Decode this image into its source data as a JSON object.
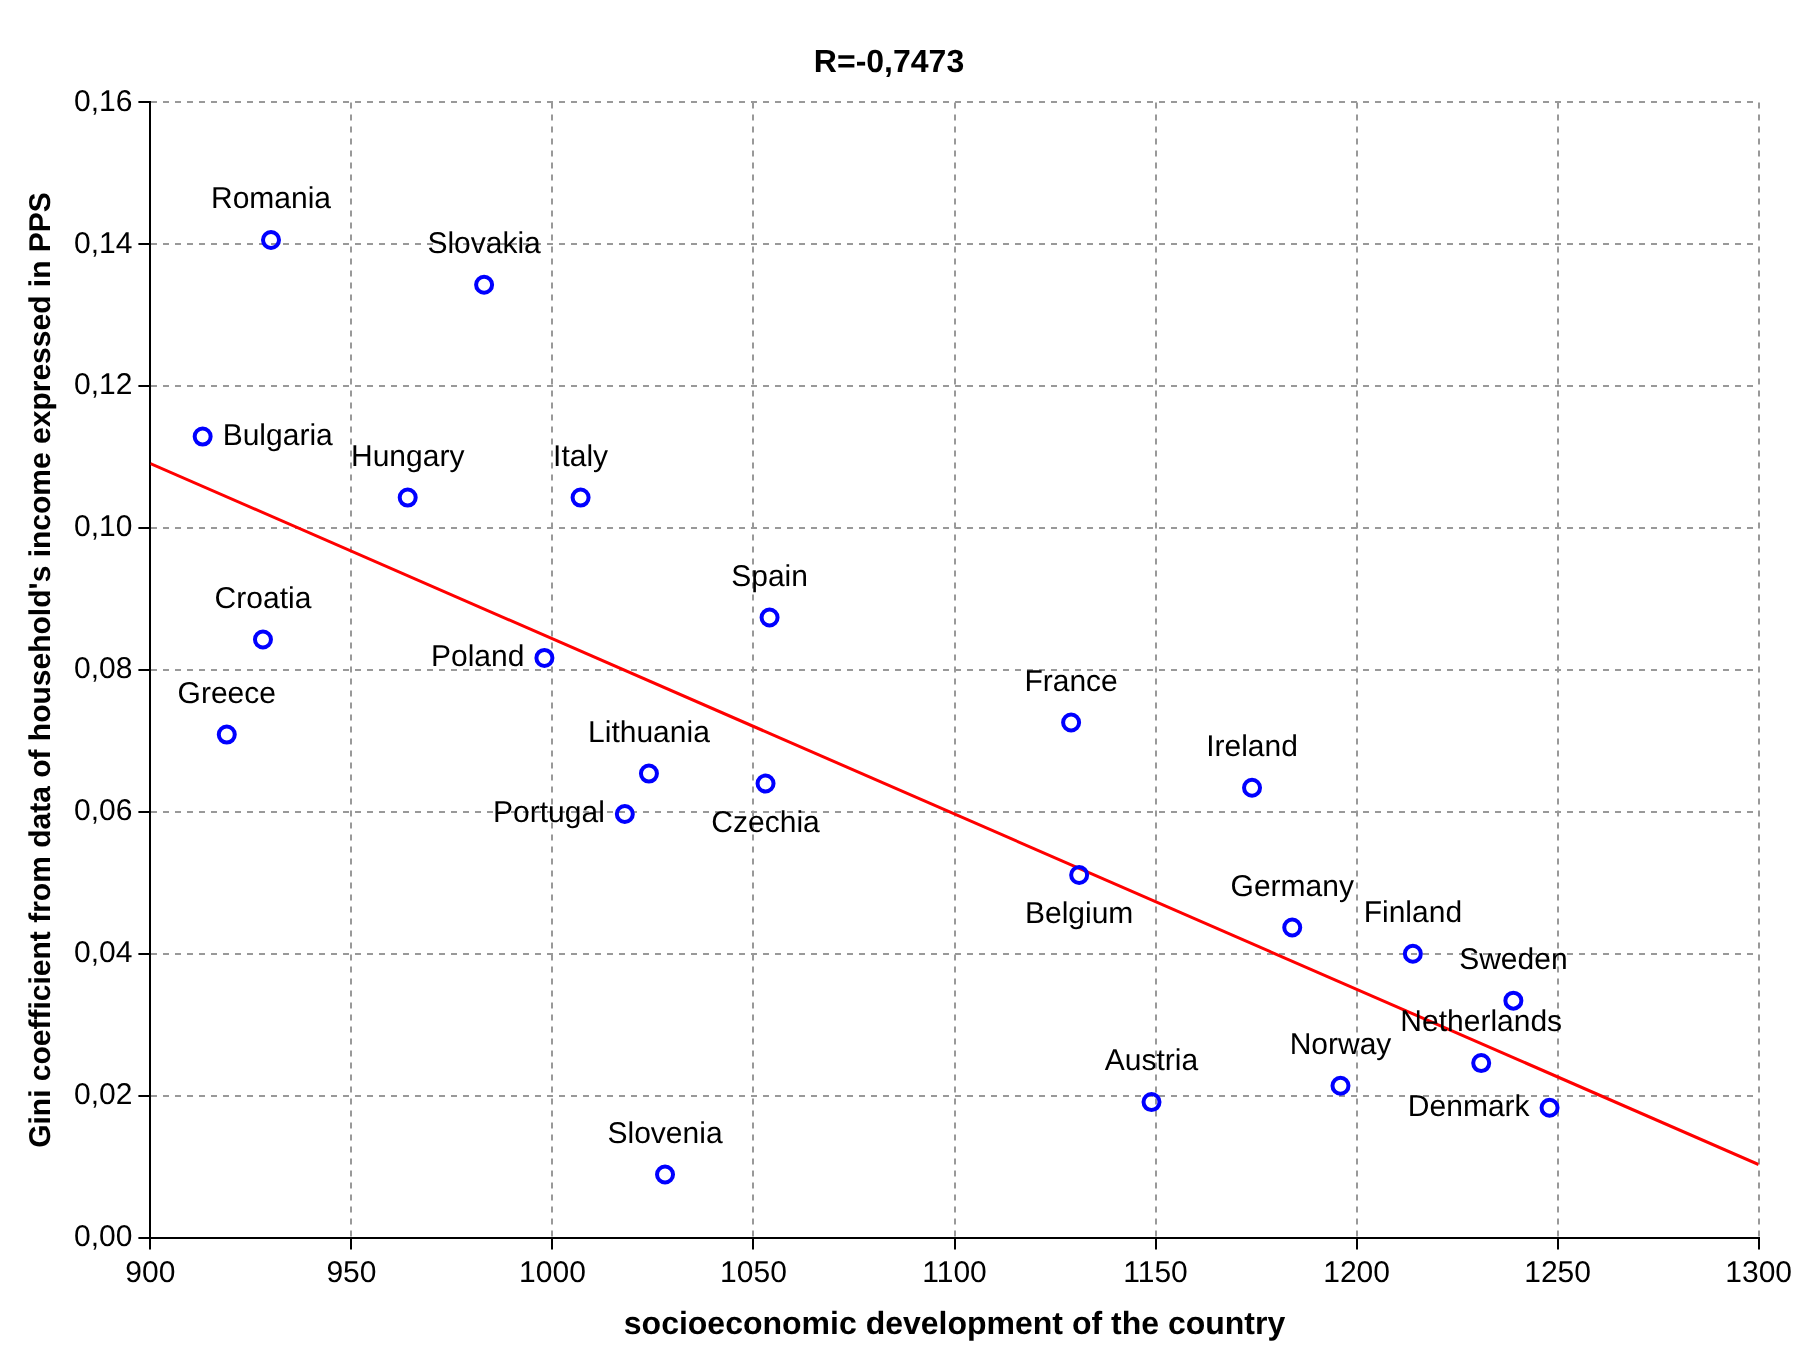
{
  "chart_data": {
    "type": "scatter",
    "title": "R=-0,7473",
    "xlabel": "socioeconomic development of the country",
    "ylabel": "Gini coefficient from data of household's income expressed in PPS",
    "series": [
      {
        "marker": "circle",
        "color": "#0000ff",
        "x": [
          930,
          983,
          913,
          964,
          1007,
          1054,
          928,
          998,
          919,
          1129,
          1024,
          1053,
          1018,
          1174,
          1131,
          1184,
          1214,
          1239,
          1149,
          1196,
          1231,
          1248,
          1028
        ],
        "values": [
          0.1406,
          0.1343,
          0.1129,
          0.1043,
          0.1043,
          0.0874,
          0.0843,
          0.0817,
          0.0709,
          0.0726,
          0.0654,
          0.064,
          0.0597,
          0.0634,
          0.0511,
          0.0437,
          0.04,
          0.0334,
          0.0191,
          0.0214,
          0.0246,
          0.0183,
          0.0089
        ]
      },
      {
        "type": "line",
        "marker": "none",
        "color": "#ff0000",
        "x": [
          900,
          1300
        ],
        "values": [
          0.1091,
          0.0103
        ]
      }
    ],
    "annotations": [
      {
        "text": "Romania",
        "x": 930,
        "y": 0.1406
      },
      {
        "text": "Slovakia",
        "x": 983,
        "y": 0.1343
      },
      {
        "text": "Bulgaria",
        "x": 913,
        "y": 0.1129
      },
      {
        "text": "Hungary",
        "x": 964,
        "y": 0.1043
      },
      {
        "text": "Italy",
        "x": 1007,
        "y": 0.1043
      },
      {
        "text": "Spain",
        "x": 1054,
        "y": 0.0874
      },
      {
        "text": "Croatia",
        "x": 928,
        "y": 0.0843
      },
      {
        "text": "Poland",
        "x": 998,
        "y": 0.0817
      },
      {
        "text": "Greece",
        "x": 919,
        "y": 0.0709
      },
      {
        "text": "France",
        "x": 1129,
        "y": 0.0726
      },
      {
        "text": "Lithuania",
        "x": 1024,
        "y": 0.0654
      },
      {
        "text": "Czechia",
        "x": 1053,
        "y": 0.064
      },
      {
        "text": "Portugal",
        "x": 1018,
        "y": 0.0597
      },
      {
        "text": "Ireland",
        "x": 1174,
        "y": 0.0634
      },
      {
        "text": "Belgium",
        "x": 1131,
        "y": 0.0511
      },
      {
        "text": "Germany",
        "x": 1184,
        "y": 0.0437
      },
      {
        "text": "Finland",
        "x": 1214,
        "y": 0.04
      },
      {
        "text": "Sweden",
        "x": 1239,
        "y": 0.0334
      },
      {
        "text": "Austria",
        "x": 1149,
        "y": 0.0191
      },
      {
        "text": "Norway",
        "x": 1196,
        "y": 0.0214
      },
      {
        "text": "Netherlands",
        "x": 1231,
        "y": 0.0246
      },
      {
        "text": "Denmark",
        "x": 1248,
        "y": 0.0183
      },
      {
        "text": "Slovenia",
        "x": 1028,
        "y": 0.0089
      }
    ],
    "xlim": [
      900,
      1300
    ],
    "xticks": [
      900,
      950,
      1000,
      1050,
      1100,
      1150,
      1200,
      1250,
      1300
    ],
    "ylim": [
      0,
      0.16
    ],
    "yticks": [
      {
        "value": 0,
        "label": "0,00"
      },
      {
        "value": 0.02,
        "label": "0,02"
      },
      {
        "value": 0.04,
        "label": "0,04"
      },
      {
        "value": 0.06,
        "label": "0,06"
      },
      {
        "value": 0.08,
        "label": "0,08"
      },
      {
        "value": 0.1,
        "label": "0,10"
      },
      {
        "value": 0.12,
        "label": "0,12"
      },
      {
        "value": 0.14,
        "label": "0,14"
      },
      {
        "value": 0.16,
        "label": "0,16"
      }
    ],
    "grid": true,
    "line_style": "solid",
    "legend": false
  }
}
